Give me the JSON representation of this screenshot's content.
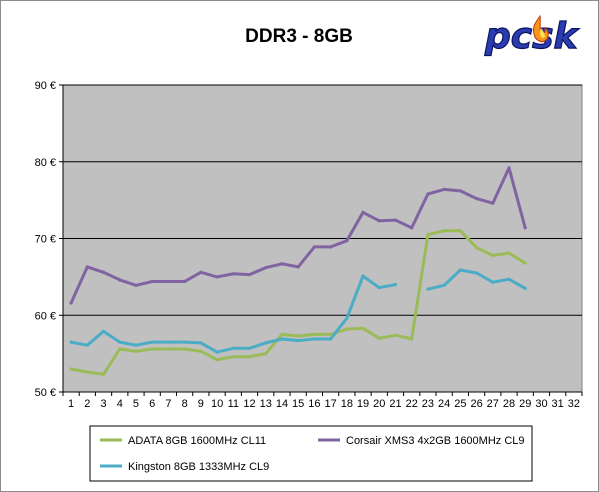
{
  "chart_data": {
    "type": "line",
    "title": "DDR3 - 8GB",
    "xlabel": "",
    "ylabel": "",
    "x": [
      1,
      2,
      3,
      4,
      5,
      6,
      7,
      8,
      9,
      10,
      11,
      12,
      13,
      14,
      15,
      16,
      17,
      18,
      19,
      20,
      21,
      22,
      23,
      24,
      25,
      26,
      27,
      28,
      29,
      30,
      31,
      32
    ],
    "xlim": [
      1,
      32
    ],
    "ylim": [
      50,
      90
    ],
    "ytick_values": [
      50,
      60,
      70,
      80,
      90
    ],
    "ytick_labels": [
      "50 €",
      "60 €",
      "70 €",
      "80 €",
      "90 €"
    ],
    "grid": "horizontal",
    "legend_position": "bottom",
    "series": [
      {
        "name": "ADATA 8GB 1600MHz CL11",
        "color": "#9bbb59",
        "values": [
          53.0,
          52.6,
          52.3,
          55.6,
          55.3,
          55.6,
          55.6,
          55.6,
          55.3,
          54.2,
          54.6,
          54.6,
          55.0,
          57.5,
          57.3,
          57.5,
          57.5,
          58.2,
          58.3,
          57.0,
          57.4,
          56.9,
          70.5,
          71.0,
          71.0,
          68.8,
          67.8,
          68.1,
          66.8,
          null,
          null,
          null
        ]
      },
      {
        "name": "Corsair XMS3 4x2GB 1600MHz CL9",
        "color": "#8064a2",
        "values": [
          61.6,
          66.3,
          65.6,
          64.6,
          63.9,
          64.4,
          64.4,
          64.4,
          65.6,
          65.0,
          65.4,
          65.3,
          66.2,
          66.7,
          66.3,
          68.9,
          68.9,
          69.7,
          73.4,
          72.3,
          72.4,
          71.4,
          75.8,
          76.4,
          76.2,
          75.2,
          74.6,
          79.2,
          71.4,
          null,
          null,
          null
        ]
      },
      {
        "name": "Kingston 8GB 1333MHz CL9",
        "color": "#4bacc6",
        "values": [
          56.5,
          56.1,
          57.9,
          56.5,
          56.1,
          56.5,
          56.5,
          56.5,
          56.4,
          55.2,
          55.7,
          55.7,
          56.4,
          56.9,
          56.7,
          56.9,
          56.9,
          59.6,
          65.1,
          63.6,
          64.0,
          null,
          63.4,
          63.9,
          65.9,
          65.5,
          64.3,
          64.7,
          63.5,
          null,
          null,
          null
        ]
      }
    ]
  },
  "logo": {
    "text": "pcsk",
    "name": "pctuning-logo"
  }
}
